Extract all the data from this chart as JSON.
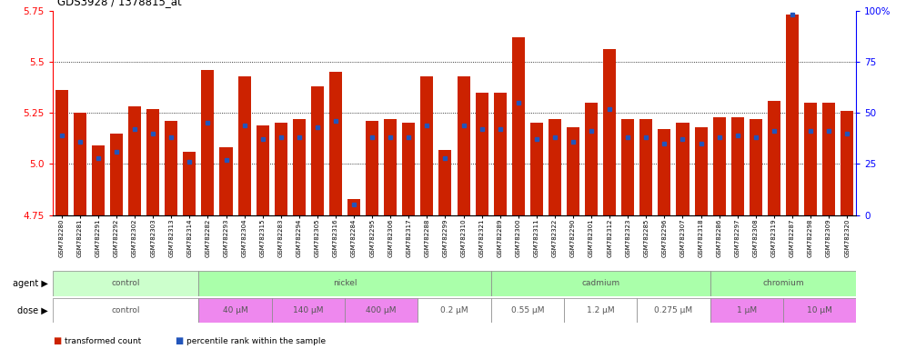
{
  "title": "GDS3928 / 1378815_at",
  "samples": [
    "GSM782280",
    "GSM782281",
    "GSM782291",
    "GSM782292",
    "GSM782302",
    "GSM782303",
    "GSM782313",
    "GSM782314",
    "GSM782282",
    "GSM782293",
    "GSM782304",
    "GSM782315",
    "GSM782283",
    "GSM782294",
    "GSM782305",
    "GSM782316",
    "GSM782284",
    "GSM782295",
    "GSM782306",
    "GSM782317",
    "GSM782288",
    "GSM782299",
    "GSM782310",
    "GSM782321",
    "GSM782289",
    "GSM782300",
    "GSM782311",
    "GSM782322",
    "GSM782290",
    "GSM782301",
    "GSM782312",
    "GSM782323",
    "GSM782285",
    "GSM782296",
    "GSM782307",
    "GSM782318",
    "GSM782286",
    "GSM782297",
    "GSM782308",
    "GSM782319",
    "GSM782287",
    "GSM782298",
    "GSM782309",
    "GSM782320"
  ],
  "red_values": [
    5.36,
    5.25,
    5.09,
    5.15,
    5.28,
    5.27,
    5.21,
    5.06,
    5.46,
    5.08,
    5.43,
    5.19,
    5.2,
    5.22,
    5.38,
    5.45,
    4.83,
    5.21,
    5.22,
    5.2,
    5.43,
    5.07,
    5.43,
    5.35,
    5.35,
    5.62,
    5.2,
    5.22,
    5.18,
    5.3,
    5.56,
    5.22,
    5.22,
    5.17,
    5.2,
    5.18,
    5.23,
    5.23,
    5.22,
    5.31,
    5.73,
    5.3,
    5.3,
    5.26
  ],
  "blue_values": [
    39,
    36,
    28,
    31,
    42,
    40,
    38,
    26,
    45,
    27,
    44,
    37,
    38,
    38,
    43,
    46,
    5,
    38,
    38,
    38,
    44,
    28,
    44,
    42,
    42,
    55,
    37,
    38,
    36,
    41,
    52,
    38,
    38,
    35,
    37,
    35,
    38,
    39,
    38,
    41,
    98,
    41,
    41,
    40
  ],
  "ymin": 4.75,
  "ymax": 5.75,
  "yticks": [
    4.75,
    5.0,
    5.25,
    5.5,
    5.75
  ],
  "right_yticks": [
    0,
    25,
    50,
    75,
    100
  ],
  "bar_color": "#cc2200",
  "blue_color": "#2255bb",
  "agent_groups": [
    {
      "label": "control",
      "start": 0,
      "end": 7,
      "color": "#ccffcc"
    },
    {
      "label": "nickel",
      "start": 8,
      "end": 23,
      "color": "#aaffaa"
    },
    {
      "label": "cadmium",
      "start": 24,
      "end": 35,
      "color": "#aaffaa"
    },
    {
      "label": "chromium",
      "start": 36,
      "end": 43,
      "color": "#aaffaa"
    }
  ],
  "dose_groups": [
    {
      "label": "control",
      "start": 0,
      "end": 7,
      "color": "#ffffff"
    },
    {
      "label": "40 μM",
      "start": 8,
      "end": 11,
      "color": "#ee88ee"
    },
    {
      "label": "140 μM",
      "start": 12,
      "end": 15,
      "color": "#ee88ee"
    },
    {
      "label": "400 μM",
      "start": 16,
      "end": 19,
      "color": "#ee88ee"
    },
    {
      "label": "0.2 μM",
      "start": 20,
      "end": 23,
      "color": "#ffffff"
    },
    {
      "label": "0.55 μM",
      "start": 24,
      "end": 27,
      "color": "#ffffff"
    },
    {
      "label": "1.2 μM",
      "start": 28,
      "end": 31,
      "color": "#ffffff"
    },
    {
      "label": "0.275 μM",
      "start": 32,
      "end": 35,
      "color": "#ffffff"
    },
    {
      "label": "1 μM",
      "start": 36,
      "end": 39,
      "color": "#ee88ee"
    },
    {
      "label": "10 μM",
      "start": 40,
      "end": 43,
      "color": "#ee88ee"
    }
  ],
  "legend_items": [
    {
      "label": "transformed count",
      "color": "#cc2200"
    },
    {
      "label": "percentile rank within the sample",
      "color": "#2255bb"
    }
  ],
  "grid_lines": [
    5.0,
    5.25,
    5.5
  ],
  "bar_width": 0.7,
  "blue_marker_size": 2.5
}
